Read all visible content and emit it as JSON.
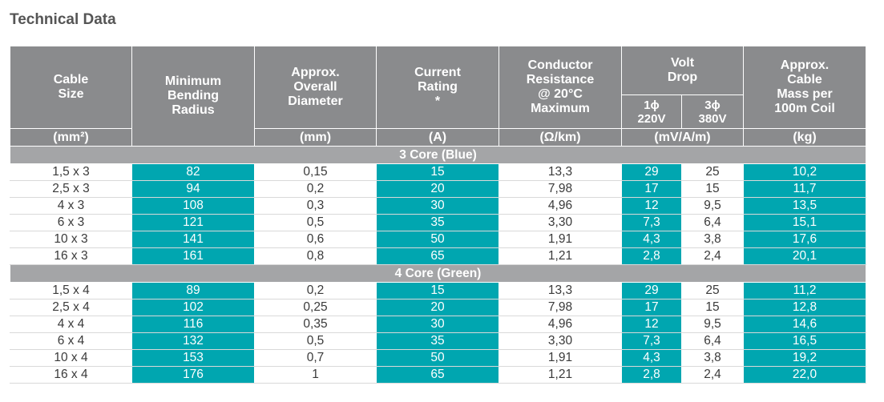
{
  "title": "Technical Data",
  "colors": {
    "header": "#8a8b8d",
    "group": "#a4a5a7",
    "teal": "#00a6b0"
  },
  "headers": {
    "cable_size": [
      "Cable",
      "Size"
    ],
    "bending": [
      "Minimum",
      "Bending",
      "Radius"
    ],
    "diameter": [
      "Approx.",
      "Overall",
      "Diameter"
    ],
    "current": [
      "Current",
      "Rating",
      "*"
    ],
    "resistance": [
      "Conductor",
      "Resistance",
      "@ 20°C",
      "Maximum"
    ],
    "volt_drop": [
      "Volt",
      "Drop"
    ],
    "vd_1ph": [
      "1ϕ",
      "220V"
    ],
    "vd_3ph": [
      "3ϕ",
      "380V"
    ],
    "mass": [
      "Approx.",
      "Cable",
      "Mass per",
      "100m Coil"
    ]
  },
  "units": [
    "(mm²)",
    "",
    "(mm)",
    "(A)",
    "(Ω/km)",
    "(mV/A/m)",
    "(kg)"
  ],
  "groups": [
    {
      "label": "3 Core (Blue)",
      "rows": [
        [
          "1,5 x 3",
          "82",
          "0,15",
          "15",
          "13,3",
          "29",
          "25",
          "10,2"
        ],
        [
          "2,5 x 3",
          "94",
          "0,2",
          "20",
          "7,98",
          "17",
          "15",
          "11,7"
        ],
        [
          "4 x 3",
          "108",
          "0,3",
          "30",
          "4,96",
          "12",
          "9,5",
          "13,5"
        ],
        [
          "6 x 3",
          "121",
          "0,5",
          "35",
          "3,30",
          "7,3",
          "6,4",
          "15,1"
        ],
        [
          "10 x 3",
          "141",
          "0,6",
          "50",
          "1,91",
          "4,3",
          "3,8",
          "17,6"
        ],
        [
          "16 x 3",
          "161",
          "0,8",
          "65",
          "1,21",
          "2,8",
          "2,4",
          "20,1"
        ]
      ]
    },
    {
      "label": "4 Core (Green)",
      "rows": [
        [
          "1,5 x 4",
          "89",
          "0,2",
          "15",
          "13,3",
          "29",
          "25",
          "11,2"
        ],
        [
          "2,5 x 4",
          "102",
          "0,25",
          "20",
          "7,98",
          "17",
          "15",
          "12,8"
        ],
        [
          "4 x 4",
          "116",
          "0,35",
          "30",
          "4,96",
          "12",
          "9,5",
          "14,6"
        ],
        [
          "6 x 4",
          "132",
          "0,5",
          "35",
          "3,30",
          "7,3",
          "6,4",
          "16,5"
        ],
        [
          "10 x 4",
          "153",
          "0,7",
          "50",
          "1,91",
          "4,3",
          "3,8",
          "19,2"
        ],
        [
          "16 x 4",
          "176",
          "1",
          "65",
          "1,21",
          "2,8",
          "2,4",
          "22,0"
        ]
      ]
    }
  ]
}
